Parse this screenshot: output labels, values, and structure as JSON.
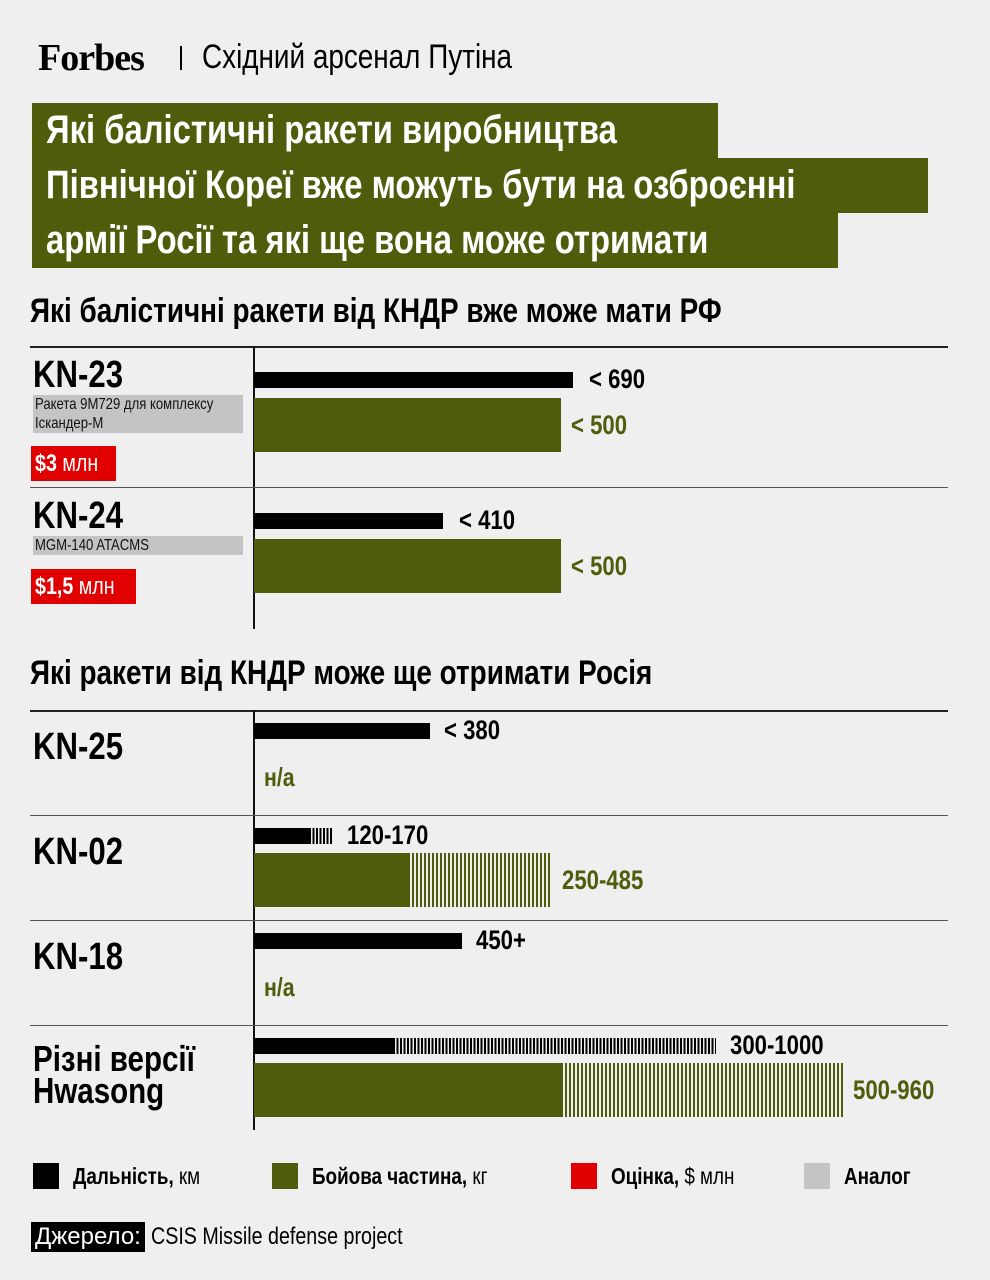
{
  "header": {
    "brand": "Forbes",
    "series": "Східний арсенал Путіна"
  },
  "title_lines": [
    "Які балістичні ракети виробництва",
    "Північної Кореї вже можуть бути на озброєнні",
    "армії Росії та які ще вона може отримати"
  ],
  "colors": {
    "range": "#000000",
    "payload": "#4f5c0c",
    "price": "#e00000",
    "analog": "#c4c4c4",
    "background": "#efefef"
  },
  "chart_data": [
    {
      "type": "bar",
      "title": "Які балістичні ракети від КНДР вже може мати РФ",
      "rows": [
        {
          "name": "KN-23",
          "analog": "Ракета 9М729 для комплексу Іскандер-М",
          "price_value": "$3",
          "price_unit": "млн",
          "range": [
            690,
            690
          ],
          "range_label": "< 690",
          "payload": [
            500,
            500
          ],
          "payload_label": "< 500"
        },
        {
          "name": "KN-24",
          "analog": "MGM-140 ATACMS",
          "price_value": "$1,5",
          "price_unit": "млн",
          "range": [
            410,
            410
          ],
          "range_label": "< 410",
          "payload": [
            500,
            500
          ],
          "payload_label": "< 500"
        }
      ]
    },
    {
      "type": "bar",
      "title": "Які ракети від КНДР може ще отримати Росія",
      "rows": [
        {
          "name": "KN-25",
          "range": [
            380,
            380
          ],
          "range_label": "< 380",
          "payload": null,
          "payload_label": "н/а"
        },
        {
          "name": "KN-02",
          "range": [
            120,
            170
          ],
          "range_label": "120-170",
          "payload": [
            250,
            485
          ],
          "payload_label": "250-485"
        },
        {
          "name": "KN-18",
          "range": [
            450,
            450
          ],
          "range_label": "450+",
          "payload": null,
          "payload_label": "н/а"
        },
        {
          "name": "Різні версії Hwasong",
          "range": [
            300,
            1000
          ],
          "range_label": "300-1000",
          "payload": [
            500,
            960
          ],
          "payload_label": "500-960"
        }
      ]
    }
  ],
  "legend": [
    {
      "bold": "Дальність,",
      "unit": "км",
      "color": "#000000"
    },
    {
      "bold": "Бойова частина,",
      "unit": "кг",
      "color": "#4f5c0c"
    },
    {
      "bold": "Оцінка,",
      "unit": "$ млн",
      "color": "#e00000"
    },
    {
      "bold": "Аналог",
      "unit": "",
      "color": "#c4c4c4"
    }
  ],
  "source": {
    "label": "Джерело:",
    "text": "CSIS Missile defense project"
  }
}
